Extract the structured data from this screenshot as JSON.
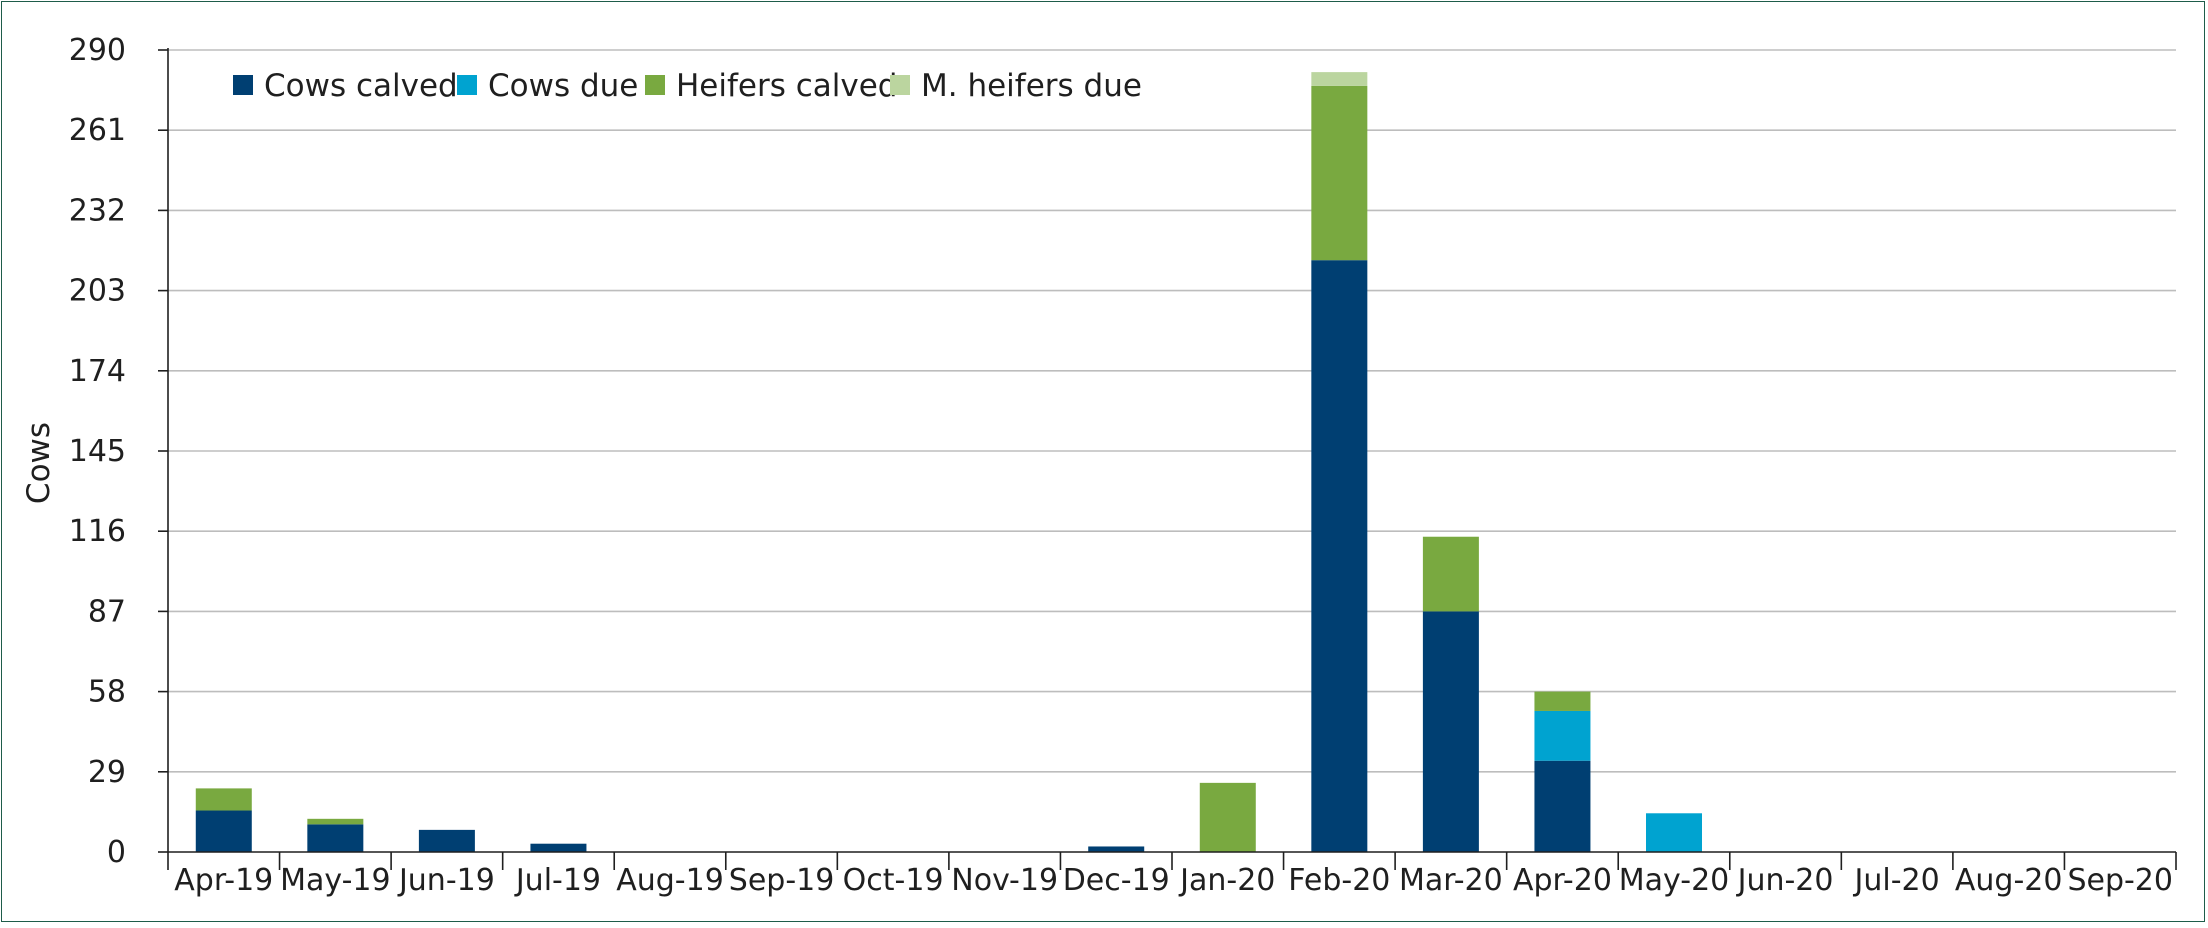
{
  "chart_data": {
    "type": "bar",
    "stacked": true,
    "ylabel": "Cows",
    "xlabel": "",
    "ylim": [
      0,
      290
    ],
    "yticks": [
      0,
      29,
      58,
      87,
      116,
      145,
      174,
      203,
      232,
      261,
      290
    ],
    "grid": true,
    "legend_position": "top-left",
    "categories": [
      "Apr-19",
      "May-19",
      "Jun-19",
      "Jul-19",
      "Aug-19",
      "Sep-19",
      "Oct-19",
      "Nov-19",
      "Dec-19",
      "Jan-20",
      "Feb-20",
      "Mar-20",
      "Apr-20",
      "May-20",
      "Jun-20",
      "Jul-20",
      "Aug-20",
      "Sep-20"
    ],
    "series": [
      {
        "name": "Cows calved",
        "color": "#003f72",
        "values": [
          15,
          10,
          8,
          3,
          0,
          0,
          0,
          0,
          2,
          0,
          214,
          87,
          33,
          0,
          0,
          0,
          0,
          0
        ]
      },
      {
        "name": "Cows due",
        "color": "#00a3d0",
        "values": [
          0,
          0,
          0,
          0,
          0,
          0,
          0,
          0,
          0,
          0,
          0,
          0,
          18,
          14,
          0,
          0,
          0,
          0
        ]
      },
      {
        "name": "Heifers calved",
        "color": "#79a940",
        "values": [
          8,
          2,
          0,
          0,
          0,
          0,
          0,
          0,
          0,
          25,
          63,
          27,
          7,
          0,
          0,
          0,
          0,
          0
        ]
      },
      {
        "name": "M. heifers due",
        "color": "#bbd59f",
        "values": [
          0,
          0,
          0,
          0,
          0,
          0,
          0,
          0,
          0,
          0,
          5,
          0,
          0,
          0,
          0,
          0,
          0,
          0
        ]
      }
    ]
  }
}
